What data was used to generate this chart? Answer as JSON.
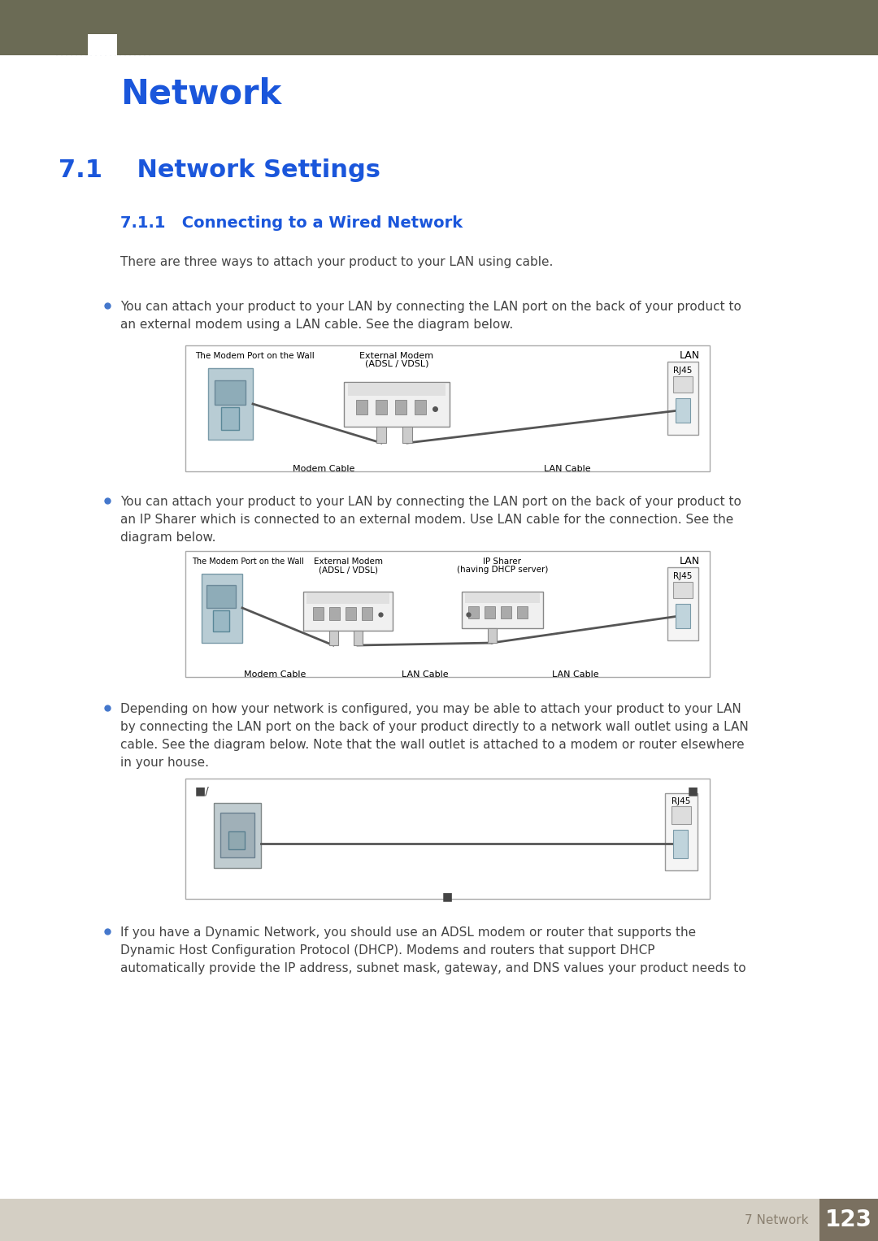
{
  "page_title": "Network",
  "section_title": "7.1    Network Settings",
  "subsection_title": "7.1.1   Connecting to a Wired Network",
  "intro_text": "There are three ways to attach your product to your LAN using cable.",
  "bullet1_text1": "You can attach your product to your LAN by connecting the LAN port on the back of your product to",
  "bullet1_text2": "an external modem using a LAN cable. See the diagram below.",
  "bullet2_text1": "You can attach your product to your LAN by connecting the LAN port on the back of your product to",
  "bullet2_text2": "an IP Sharer which is connected to an external modem. Use LAN cable for the connection. See the",
  "bullet2_text3": "diagram below.",
  "bullet3_text1": "Depending on how your network is configured, you may be able to attach your product to your LAN",
  "bullet3_text2": "by connecting the LAN port on the back of your product directly to a network wall outlet using a LAN",
  "bullet3_text3": "cable. See the diagram below. Note that the wall outlet is attached to a modem or router elsewhere",
  "bullet3_text4": "in your house.",
  "bullet4_text1": "If you have a Dynamic Network, you should use an ADSL modem or router that supports the",
  "bullet4_text2": "Dynamic Host Configuration Protocol (DHCP). Modems and routers that support DHCP",
  "bullet4_text3": "automatically provide the IP address, subnet mask, gateway, and DNS values your product needs to",
  "header_bg_color": "#6b6b55",
  "header_stripe_color": "#c0c0d0",
  "title_color": "#1a56db",
  "section_color": "#1a56db",
  "subsection_color": "#1a56db",
  "body_text_color": "#444444",
  "diagram_border_color": "#aaaaaa",
  "diagram_bg_color": "#ffffff",
  "footer_bg_color": "#d4cfc4",
  "footer_text_color": "#8a8070",
  "page_number_bg": "#7a7060",
  "page_number_color": "#ffffff",
  "page_number": "123",
  "footer_text": "7 Network",
  "bullet_color": "#4477cc",
  "bg_color": "#ffffff",
  "device_fill": "#b0c8d0",
  "device_stroke": "#808080",
  "modem_fill": "#f0f0f0",
  "modem_stroke": "#888888",
  "rj_fill": "#f5f5f5",
  "rj_stroke": "#999999",
  "cable_color": "#555555",
  "port_fill": "#aaaaaa",
  "connector_fill": "#c8d8e0"
}
